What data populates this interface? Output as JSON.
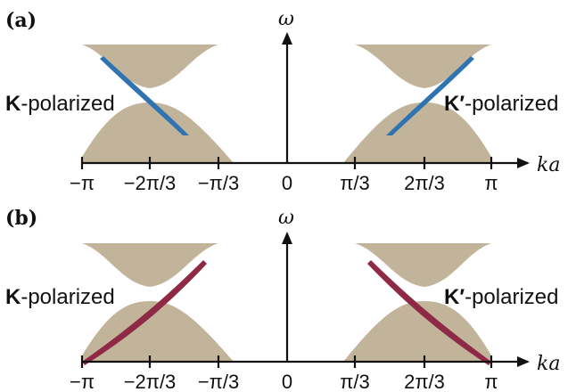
{
  "panels": [
    {
      "label": "(a)",
      "y_axis_label": "ω",
      "x_axis_label": "ka",
      "left_label_bold": "K",
      "left_label_rest": "-polarized",
      "right_label_bold": "K′",
      "right_label_rest": "-polarized",
      "edge_color": "#2f74b0"
    },
    {
      "label": "(b)",
      "y_axis_label": "ω",
      "x_axis_label": "ka",
      "left_label_bold": "K",
      "left_label_rest": "-polarized",
      "right_label_bold": "K′",
      "right_label_rest": "-polarized",
      "edge_color": "#8e2a46"
    }
  ],
  "tick_labels": [
    "−π",
    "−2π/3",
    "−π/3",
    "0",
    "π/3",
    "2π/3",
    "π"
  ],
  "colors": {
    "band_fill": "#c2b49a",
    "axis": "#111111"
  }
}
